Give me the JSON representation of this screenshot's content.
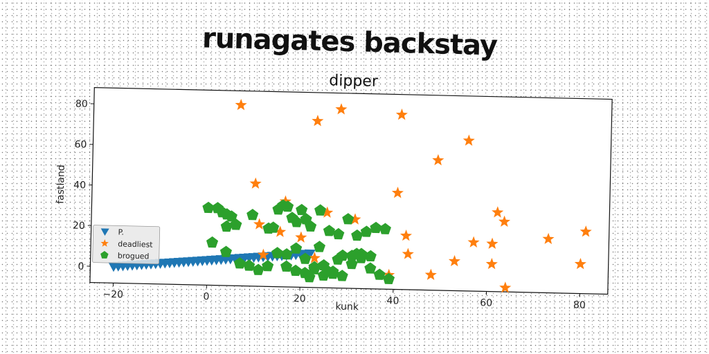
{
  "figure_title": "runagates backstay",
  "chart_data": {
    "type": "scatter",
    "title": "dipper",
    "xlabel": "kunk",
    "ylabel": "fastland",
    "xlim": [
      -25,
      86
    ],
    "ylim": [
      -8,
      88
    ],
    "xticks": [
      -20,
      0,
      20,
      40,
      60,
      80
    ],
    "yticks": [
      0,
      20,
      40,
      60,
      80
    ],
    "grid": false,
    "legend_position": "lower-left",
    "series": [
      {
        "name": "P.",
        "marker": "triangle-down",
        "color": "#1f77b4",
        "x": [
          -20,
          -19,
          -18,
          -17,
          -16,
          -15,
          -14,
          -13,
          -12,
          -11,
          -10,
          -9,
          -8,
          -7,
          -6,
          -5,
          -4,
          -3,
          -2,
          -1,
          0,
          1,
          2,
          3,
          4,
          5,
          6,
          7,
          8,
          9,
          10,
          11,
          12,
          13,
          14,
          15,
          16,
          17,
          18,
          19,
          20,
          21,
          22
        ],
        "y": [
          0.2,
          0.4,
          0.6,
          0.8,
          1.0,
          1.2,
          1.4,
          1.6,
          1.8,
          2.0,
          2.2,
          2.4,
          2.6,
          2.8,
          3.0,
          3.2,
          3.4,
          3.6,
          3.8,
          4.0,
          4.2,
          4.4,
          4.6,
          4.8,
          5.0,
          5.2,
          5.4,
          5.6,
          5.8,
          6.0,
          6.2,
          6.4,
          6.6,
          6.8,
          7.0,
          7.2,
          7.4,
          7.6,
          7.8,
          8.0,
          8.2,
          8.4,
          8.6
        ]
      },
      {
        "name": "deadliest",
        "marker": "star",
        "color": "#ff7f0e",
        "x": [
          6.5,
          23,
          28,
          41,
          55.5,
          49,
          10,
          40.5,
          16.5,
          11,
          25.5,
          31.5,
          15.5,
          20,
          42.5,
          43,
          62,
          63.5,
          57,
          61,
          81,
          73,
          23,
          12,
          39,
          48,
          53,
          61,
          80,
          64
        ],
        "y": [
          81,
          74,
          80,
          78,
          66,
          56,
          42.5,
          39.5,
          34,
          22.5,
          29,
          26,
          19,
          16.5,
          18.5,
          9.5,
          31,
          26.5,
          16,
          15.5,
          22.5,
          18.5,
          6.5,
          7.5,
          -1,
          -0.5,
          6.5,
          5.5,
          6.5,
          -6
        ]
      },
      {
        "name": "brogued",
        "marker": "pentagon",
        "color": "#2ca02c",
        "x": [
          0,
          2,
          3,
          4,
          5,
          4,
          6,
          9.5,
          13,
          14,
          15,
          16,
          17,
          18,
          19,
          20,
          21,
          22,
          24,
          26,
          28,
          30,
          32,
          34,
          36,
          38,
          1,
          4,
          7,
          9,
          11,
          13,
          15,
          17,
          19,
          21,
          23,
          25,
          27,
          29,
          31,
          33,
          35,
          17,
          19,
          21,
          23,
          25,
          27,
          29,
          31,
          33,
          35,
          37,
          39,
          22,
          26,
          28,
          32,
          24
        ],
        "y": [
          30,
          30,
          28,
          27,
          26,
          21,
          22,
          27,
          20.5,
          21,
          30,
          32,
          31.5,
          26,
          24,
          30,
          25.5,
          22,
          30,
          20,
          18.5,
          26,
          18,
          20,
          22,
          21.5,
          13,
          8.5,
          3,
          2,
          0,
          2,
          8.5,
          2,
          0,
          -1,
          1,
          -2,
          -1,
          8,
          8,
          9,
          8,
          8,
          11,
          6,
          2,
          3,
          0,
          -2,
          4,
          7,
          2,
          -1,
          -3,
          -3,
          0,
          6,
          9,
          12
        ]
      }
    ]
  }
}
